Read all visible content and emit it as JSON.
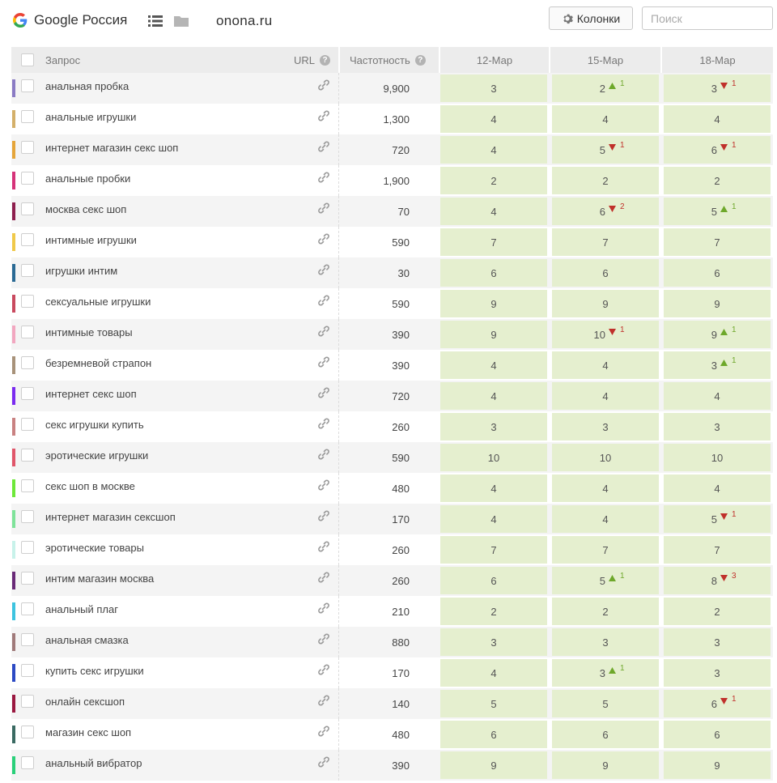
{
  "header": {
    "engine_label": "Google Россия",
    "site": "onona.ru",
    "columns_button": "Колонки",
    "search_placeholder": "Поиск",
    "icons": [
      "google-logo-icon",
      "list-icon",
      "folder-icon",
      "gear-icon",
      "link-icon",
      "help-icon",
      "arrow-up-icon",
      "arrow-down-icon"
    ]
  },
  "table": {
    "col_query": "Запрос",
    "col_url": "URL",
    "col_freq": "Частотность",
    "date_columns": [
      "12-Мар",
      "15-Мар",
      "18-Мар"
    ],
    "colors": {
      "position_bg": "#e5efcf",
      "up": "#6ea82b",
      "down": "#c0302b"
    },
    "rows": [
      {
        "query": "анальная пробка",
        "freq": "9,900",
        "color": "#8a7bc4",
        "positions": [
          {
            "v": "3"
          },
          {
            "v": "2",
            "dir": "up",
            "d": "1"
          },
          {
            "v": "3",
            "dir": "down",
            "d": "1"
          }
        ]
      },
      {
        "query": "анальные игрушки",
        "freq": "1,300",
        "color": "#d4b06a",
        "positions": [
          {
            "v": "4"
          },
          {
            "v": "4"
          },
          {
            "v": "4"
          }
        ]
      },
      {
        "query": "интернет магазин секс шоп",
        "freq": "720",
        "color": "#e5a53a",
        "positions": [
          {
            "v": "4"
          },
          {
            "v": "5",
            "dir": "down",
            "d": "1"
          },
          {
            "v": "6",
            "dir": "down",
            "d": "1"
          }
        ]
      },
      {
        "query": "анальные пробки",
        "freq": "1,900",
        "color": "#d6337a",
        "positions": [
          {
            "v": "2"
          },
          {
            "v": "2"
          },
          {
            "v": "2"
          }
        ]
      },
      {
        "query": "москва секс шоп",
        "freq": "70",
        "color": "#8e1f4e",
        "positions": [
          {
            "v": "4"
          },
          {
            "v": "6",
            "dir": "down",
            "d": "2"
          },
          {
            "v": "5",
            "dir": "up",
            "d": "1"
          }
        ]
      },
      {
        "query": "интимные игрушки",
        "freq": "590",
        "color": "#f0c94a",
        "positions": [
          {
            "v": "7"
          },
          {
            "v": "7"
          },
          {
            "v": "7"
          }
        ]
      },
      {
        "query": "игрушки интим",
        "freq": "30",
        "color": "#2a6a94",
        "positions": [
          {
            "v": "6"
          },
          {
            "v": "6"
          },
          {
            "v": "6"
          }
        ]
      },
      {
        "query": "сексуальные игрушки",
        "freq": "590",
        "color": "#c94a5f",
        "positions": [
          {
            "v": "9"
          },
          {
            "v": "9"
          },
          {
            "v": "9"
          }
        ]
      },
      {
        "query": "интимные товары",
        "freq": "390",
        "color": "#f2a7c0",
        "positions": [
          {
            "v": "9"
          },
          {
            "v": "10",
            "dir": "down",
            "d": "1"
          },
          {
            "v": "9",
            "dir": "up",
            "d": "1"
          }
        ]
      },
      {
        "query": "безремневой страпон",
        "freq": "390",
        "color": "#a8927a",
        "positions": [
          {
            "v": "4"
          },
          {
            "v": "4"
          },
          {
            "v": "3",
            "dir": "up",
            "d": "1"
          }
        ]
      },
      {
        "query": "интернет секс шоп",
        "freq": "720",
        "color": "#7b2cf0",
        "positions": [
          {
            "v": "4"
          },
          {
            "v": "4"
          },
          {
            "v": "4"
          }
        ]
      },
      {
        "query": "секс игрушки купить",
        "freq": "260",
        "color": "#c98282",
        "positions": [
          {
            "v": "3"
          },
          {
            "v": "3"
          },
          {
            "v": "3"
          }
        ]
      },
      {
        "query": "эротические игрушки",
        "freq": "590",
        "color": "#e0566a",
        "positions": [
          {
            "v": "10"
          },
          {
            "v": "10"
          },
          {
            "v": "10"
          }
        ]
      },
      {
        "query": "секс шоп в москве",
        "freq": "480",
        "color": "#6ee83a",
        "positions": [
          {
            "v": "4"
          },
          {
            "v": "4"
          },
          {
            "v": "4"
          }
        ]
      },
      {
        "query": "интернет магазин сексшоп",
        "freq": "170",
        "color": "#7fe39a",
        "positions": [
          {
            "v": "4"
          },
          {
            "v": "4"
          },
          {
            "v": "5",
            "dir": "down",
            "d": "1"
          }
        ]
      },
      {
        "query": "эротические товары",
        "freq": "260",
        "color": "#c8f2ea",
        "positions": [
          {
            "v": "7"
          },
          {
            "v": "7"
          },
          {
            "v": "7"
          }
        ]
      },
      {
        "query": "интим магазин москва",
        "freq": "260",
        "color": "#6a2a78",
        "positions": [
          {
            "v": "6"
          },
          {
            "v": "5",
            "dir": "up",
            "d": "1"
          },
          {
            "v": "8",
            "dir": "down",
            "d": "3"
          }
        ]
      },
      {
        "query": "анальный плаг",
        "freq": "210",
        "color": "#3ec4e0",
        "positions": [
          {
            "v": "2"
          },
          {
            "v": "2"
          },
          {
            "v": "2"
          }
        ]
      },
      {
        "query": "анальная смазка",
        "freq": "880",
        "color": "#a07a7a",
        "positions": [
          {
            "v": "3"
          },
          {
            "v": "3"
          },
          {
            "v": "3"
          }
        ]
      },
      {
        "query": "купить секс игрушки",
        "freq": "170",
        "color": "#2c4ac4",
        "positions": [
          {
            "v": "4"
          },
          {
            "v": "3",
            "dir": "up",
            "d": "1"
          },
          {
            "v": "3"
          }
        ]
      },
      {
        "query": "онлайн сексшоп",
        "freq": "140",
        "color": "#9a1840",
        "positions": [
          {
            "v": "5"
          },
          {
            "v": "5"
          },
          {
            "v": "6",
            "dir": "down",
            "d": "1"
          }
        ]
      },
      {
        "query": "магазин секс шоп",
        "freq": "480",
        "color": "#3a6a62",
        "positions": [
          {
            "v": "6"
          },
          {
            "v": "6"
          },
          {
            "v": "6"
          }
        ]
      },
      {
        "query": "анальный вибратор",
        "freq": "390",
        "color": "#2ad07a",
        "positions": [
          {
            "v": "9"
          },
          {
            "v": "9"
          },
          {
            "v": "9"
          }
        ]
      }
    ]
  }
}
